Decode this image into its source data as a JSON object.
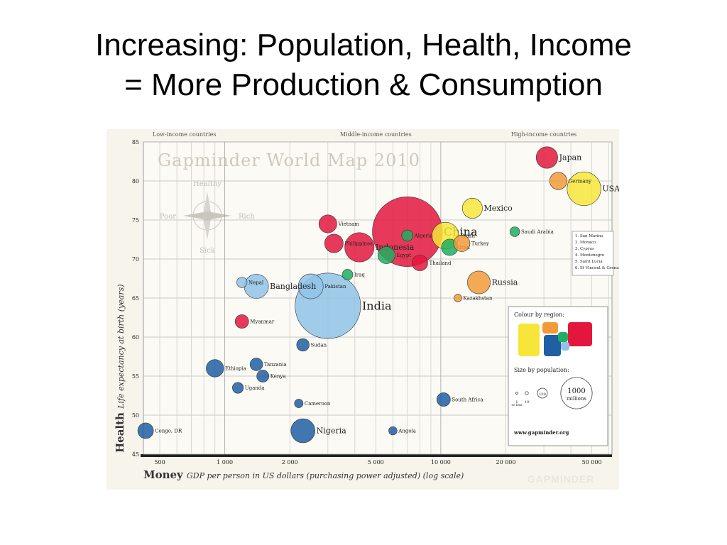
{
  "slide": {
    "title_line1": "Increasing: Population, Health, Income",
    "title_line2": "= More Production & Consumption"
  },
  "chart_data": {
    "type": "scatter",
    "title": "Gapminder World Map 2010",
    "xlabel_bold": "Money",
    "xlabel": "GDP per person in US dollars (purchasing power adjusted) (log scale)",
    "ylabel_bold": "Health",
    "ylabel": "Life expectancy at birth (years)",
    "x_scale": "log",
    "xlim": [
      420,
      62000
    ],
    "ylim": [
      45,
      85
    ],
    "x_ticks": [
      500,
      1000,
      2000,
      5000,
      10000,
      20000,
      50000
    ],
    "x_tick_labels": [
      "500",
      "1 000",
      "2 000",
      "5 000",
      "10 000",
      "20 000",
      "50 000"
    ],
    "y_ticks": [
      45,
      50,
      55,
      60,
      65,
      70,
      75,
      80,
      85
    ],
    "income_bands": [
      {
        "label": "Low-income countries",
        "x": 650
      },
      {
        "label": "Middle-income countries",
        "x": 5000
      },
      {
        "label": "High-income countries",
        "x": 30000
      }
    ],
    "compass": {
      "top": "Healthy",
      "bottom": "Sick",
      "left": "Poor",
      "right": "Rich"
    },
    "grid": true,
    "color_legend_title": "Colour by region:",
    "size_legend": {
      "title": "Size by population:",
      "labels": [
        "1",
        "10",
        "100",
        "1000"
      ],
      "sublabel_small": "or less",
      "sublabel_big": "millions"
    },
    "small_countries": [
      "San Marino",
      "Monaco",
      "Cyprus",
      "Montenegro",
      "Saint Lucia",
      "St Vincent & Grenadines"
    ],
    "website": "www.gapminder.org",
    "watermark": "GAPMINDER",
    "region_colors": {
      "africa": "#1f5fa3",
      "asia": "#e3173e",
      "america": "#f7e53a",
      "europe": "#f29a3a",
      "middle_east": "#1fae62",
      "south_asia": "#8fc3e8"
    },
    "points": [
      {
        "name": "China",
        "x": 7000,
        "y": 73.5,
        "pop": 1330,
        "region": "asia"
      },
      {
        "name": "India",
        "x": 3000,
        "y": 64,
        "pop": 1170,
        "region": "south_asia"
      },
      {
        "name": "USA",
        "x": 46000,
        "y": 79,
        "pop": 310,
        "region": "america"
      },
      {
        "name": "Japan",
        "x": 31000,
        "y": 83,
        "pop": 127,
        "region": "asia"
      },
      {
        "name": "Russia",
        "x": 15000,
        "y": 67,
        "pop": 142,
        "region": "europe"
      },
      {
        "name": "Nigeria",
        "x": 2300,
        "y": 48,
        "pop": 158,
        "region": "africa"
      },
      {
        "name": "Bangladesh",
        "x": 1400,
        "y": 66.5,
        "pop": 160,
        "region": "south_asia"
      },
      {
        "name": "Pakistan",
        "x": 2500,
        "y": 66.5,
        "pop": 170,
        "region": "south_asia"
      },
      {
        "name": "Indonesia",
        "x": 4200,
        "y": 71.5,
        "pop": 235,
        "region": "asia"
      },
      {
        "name": "Brazil",
        "x": 10500,
        "y": 73,
        "pop": 195,
        "region": "america"
      },
      {
        "name": "Mexico",
        "x": 14000,
        "y": 76.5,
        "pop": 110,
        "region": "america"
      },
      {
        "name": "Philippines",
        "x": 3200,
        "y": 72,
        "pop": 94,
        "region": "asia"
      },
      {
        "name": "Vietnam",
        "x": 3000,
        "y": 74.5,
        "pop": 88,
        "region": "asia"
      },
      {
        "name": "Egypt",
        "x": 5600,
        "y": 70.5,
        "pop": 80,
        "region": "middle_east"
      },
      {
        "name": "Iran",
        "x": 11000,
        "y": 71.5,
        "pop": 74,
        "region": "middle_east"
      },
      {
        "name": "Turkey",
        "x": 12500,
        "y": 72,
        "pop": 73,
        "region": "europe"
      },
      {
        "name": "Germany",
        "x": 35000,
        "y": 80,
        "pop": 82,
        "region": "europe"
      },
      {
        "name": "Thailand",
        "x": 8000,
        "y": 69.5,
        "pop": 68,
        "region": "asia"
      },
      {
        "name": "Ethiopia",
        "x": 900,
        "y": 56,
        "pop": 83,
        "region": "africa"
      },
      {
        "name": "Congo, DR",
        "x": 430,
        "y": 48,
        "pop": 67,
        "region": "africa"
      },
      {
        "name": "South Africa",
        "x": 10300,
        "y": 52,
        "pop": 50,
        "region": "africa"
      },
      {
        "name": "Myanmar",
        "x": 1200,
        "y": 62,
        "pop": 50,
        "region": "asia"
      },
      {
        "name": "Nepal",
        "x": 1200,
        "y": 67,
        "pop": 29,
        "region": "south_asia"
      },
      {
        "name": "Tanzania",
        "x": 1400,
        "y": 56.5,
        "pop": 44,
        "region": "africa"
      },
      {
        "name": "Kenya",
        "x": 1500,
        "y": 55,
        "pop": 40,
        "region": "africa"
      },
      {
        "name": "Sudan",
        "x": 2300,
        "y": 59,
        "pop": 43,
        "region": "africa"
      },
      {
        "name": "Uganda",
        "x": 1150,
        "y": 53.5,
        "pop": 33,
        "region": "africa"
      },
      {
        "name": "Iraq",
        "x": 3700,
        "y": 68,
        "pop": 31,
        "region": "middle_east"
      },
      {
        "name": "Cameroon",
        "x": 2200,
        "y": 51.5,
        "pop": 20,
        "region": "africa"
      },
      {
        "name": "Angola",
        "x": 6000,
        "y": 48,
        "pop": 19,
        "region": "africa"
      },
      {
        "name": "Kazakhstan",
        "x": 12000,
        "y": 65,
        "pop": 16,
        "region": "europe"
      },
      {
        "name": "Saudi Arabia",
        "x": 22000,
        "y": 73.5,
        "pop": 26,
        "region": "middle_east"
      },
      {
        "name": "Algeria",
        "x": 7000,
        "y": 73,
        "pop": 35,
        "region": "middle_east"
      }
    ]
  }
}
